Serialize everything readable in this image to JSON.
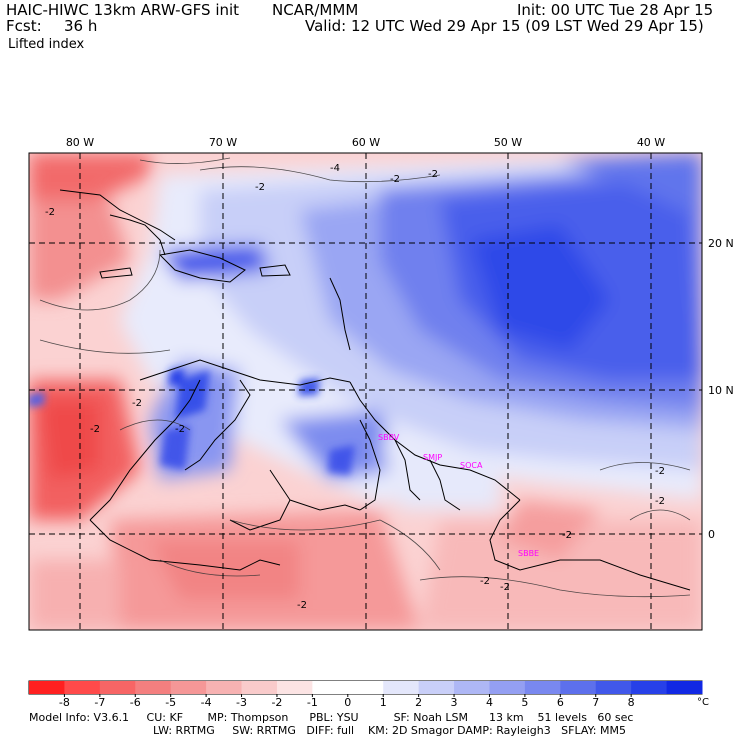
{
  "header": {
    "title": "HAIC-HIWC 13km ARW-GFS init",
    "org": "NCAR/MMM",
    "init": "Init: 00 UTC Tue 28 Apr 15",
    "fcst_label": "Fcst:",
    "fcst_value": "36 h",
    "valid": "Valid: 12 UTC Wed 29 Apr 15 (09 LST Wed 29 Apr 15)",
    "field": "Lifted index"
  },
  "map": {
    "lon_labels": [
      "80 W",
      "70 W",
      "60 W",
      "50 W",
      "40 W"
    ],
    "lat_labels": [
      "20 N",
      "10 N",
      "0"
    ],
    "contour_labels": [
      "-2",
      "-2",
      "-2",
      "-4",
      "-2",
      "-2",
      "-2",
      "-2",
      "-2",
      "-2",
      "-2",
      "-2",
      "-2",
      "-2"
    ],
    "station_labels": [
      "SBBV",
      "SMJP",
      "SOCA",
      "SBBE"
    ],
    "colors": {
      "strong_negative": "#ff3333",
      "negative": "#f28080",
      "weak_negative": "#fbd0d0",
      "neutral": "#ffffff",
      "weak_positive": "#c6cdf6",
      "positive": "#6b7ef0",
      "strong_positive": "#2233ee",
      "coast": "#000000",
      "station": "#ff00ff"
    }
  },
  "colorbar": {
    "labels": [
      "-8",
      "-7",
      "-6",
      "-5",
      "-4",
      "-3",
      "-2",
      "-1",
      "0",
      "1",
      "2",
      "3",
      "4",
      "5",
      "6",
      "7",
      "8"
    ],
    "unit": "°C",
    "colors": [
      "#ff2020",
      "#ff4a4a",
      "#f76565",
      "#f47f7f",
      "#f59797",
      "#f7b2b2",
      "#f9cbcb",
      "#fce4e4",
      "#ffffff",
      "#ffffff",
      "#e4e7fb",
      "#c9cff8",
      "#aeb7f5",
      "#949ff2",
      "#7988ef",
      "#5d70ec",
      "#4158ea",
      "#2740e8",
      "#1128e4"
    ]
  },
  "footer": {
    "line1": "Model Info: V3.6.1     CU: KF       MP: Thompson      PBL: YSU          SF: Noah LSM      13 km    51 levels   60 sec",
    "line2": "LW: RRTMG     SW: RRTMG   DIFF: full    KM: 2D Smagor DAMP: Rayleigh3   SFLAY: MM5"
  }
}
